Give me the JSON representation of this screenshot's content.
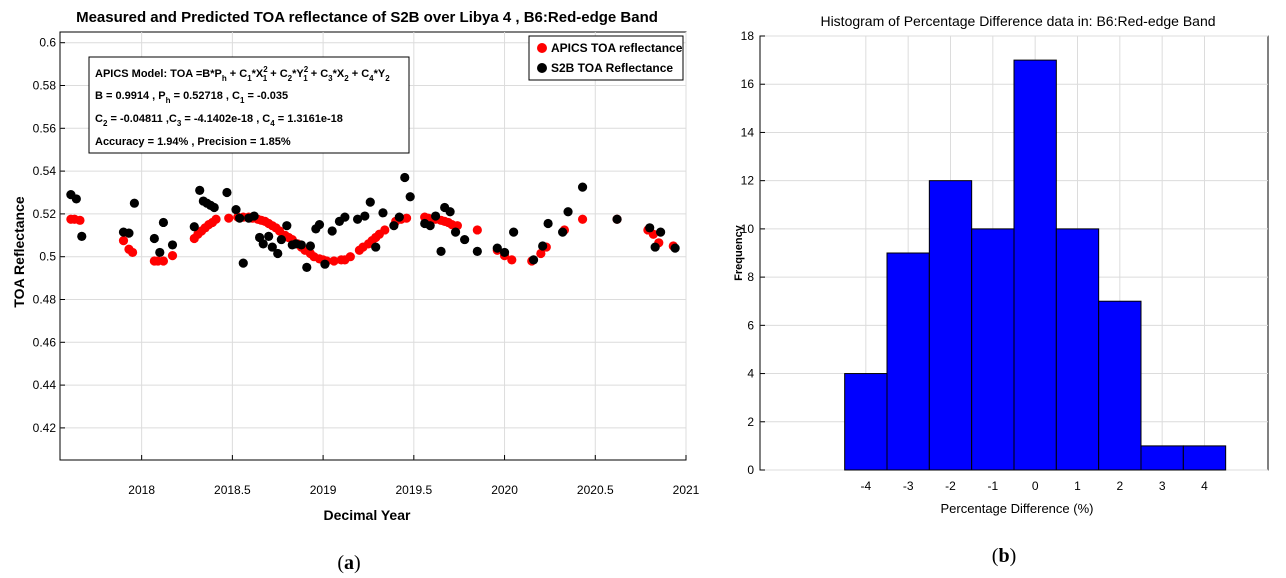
{
  "chart_data": [
    {
      "type": "scatter",
      "title": "Measured and Predicted TOA reflectance of S2B over Libya 4 , B6:Red-edge Band",
      "xlabel": "Decimal Year",
      "ylabel": "TOA Reflectance",
      "xlim": [
        2017.55,
        2021.0
      ],
      "ylim": [
        0.405,
        0.605
      ],
      "xticks": [
        2018,
        2018.5,
        2019,
        2019.5,
        2020,
        2020.5,
        2021
      ],
      "xtick_labels": [
        "2018",
        "2018.5",
        "2019",
        "2019.5",
        "2020",
        "2020.5",
        "2021"
      ],
      "yticks": [
        0.42,
        0.44,
        0.46,
        0.48,
        0.5,
        0.52,
        0.54,
        0.56,
        0.58,
        0.6
      ],
      "ytick_labels": [
        "0.42",
        "0.44",
        "0.46",
        "0.48",
        "0.5",
        "0.52",
        "0.54",
        "0.56",
        "0.58",
        "0.6"
      ],
      "grid": true,
      "legend_position": "top-right",
      "annotation": {
        "model": "APICS Model: TOA =B*P",
        "line2": "B  = 0.9914 ,  P",
        "line2b": " = 0.52718 , C",
        "line2c": " = -0.035",
        "line3": "C",
        "line3b": " = -0.04811 ,C",
        "line3c": " = -4.1402e-18 , C",
        "line3d": " = 1.3161e-18",
        "line4": "Accuracy = 1.94% , Precision = 1.85%"
      },
      "series": [
        {
          "name": "APICS TOA reflectance",
          "color": "#ff0000",
          "x": [
            2017.61,
            2017.63,
            2017.66,
            2017.9,
            2017.93,
            2017.95,
            2018.07,
            2018.09,
            2018.12,
            2018.17,
            2018.29,
            2018.31,
            2018.33,
            2018.35,
            2018.37,
            2018.39,
            2018.41,
            2018.48,
            2018.53,
            2018.56,
            2018.59,
            2018.61,
            2018.64,
            2018.66,
            2018.68,
            2018.7,
            2018.72,
            2018.74,
            2018.76,
            2018.79,
            2018.81,
            2018.83,
            2018.86,
            2018.88,
            2018.9,
            2018.93,
            2018.95,
            2018.98,
            2019.0,
            2019.02,
            2019.06,
            2019.1,
            2019.12,
            2019.15,
            2019.2,
            2019.22,
            2019.25,
            2019.27,
            2019.29,
            2019.31,
            2019.34,
            2019.4,
            2019.43,
            2019.46,
            2019.56,
            2019.58,
            2019.62,
            2019.65,
            2019.67,
            2019.69,
            2019.71,
            2019.74,
            2019.85,
            2019.96,
            2020.0,
            2020.04,
            2020.15,
            2020.2,
            2020.23,
            2020.33,
            2020.43,
            2020.62,
            2020.79,
            2020.82,
            2020.85,
            2020.93
          ],
          "y": [
            0.5175,
            0.5175,
            0.517,
            0.5075,
            0.5035,
            0.502,
            0.498,
            0.498,
            0.498,
            0.5005,
            0.5085,
            0.5105,
            0.512,
            0.5135,
            0.515,
            0.516,
            0.5175,
            0.518,
            0.5185,
            0.5185,
            0.5185,
            0.518,
            0.5175,
            0.517,
            0.5165,
            0.5155,
            0.5145,
            0.5135,
            0.512,
            0.51,
            0.509,
            0.508,
            0.506,
            0.5045,
            0.503,
            0.5015,
            0.5,
            0.499,
            0.4985,
            0.498,
            0.498,
            0.4985,
            0.4985,
            0.5,
            0.503,
            0.5045,
            0.506,
            0.5075,
            0.509,
            0.5105,
            0.5125,
            0.5165,
            0.5175,
            0.518,
            0.5185,
            0.518,
            0.5175,
            0.517,
            0.5165,
            0.516,
            0.515,
            0.5145,
            0.5125,
            0.503,
            0.5005,
            0.4985,
            0.498,
            0.5015,
            0.5045,
            0.5125,
            0.5175,
            0.5175,
            0.5125,
            0.5105,
            0.5065,
            0.505
          ]
        },
        {
          "name": "S2B TOA Reflectance",
          "color": "#000000",
          "x": [
            2017.61,
            2017.64,
            2017.67,
            2017.9,
            2017.93,
            2017.96,
            2018.07,
            2018.1,
            2018.12,
            2018.17,
            2018.29,
            2018.32,
            2018.34,
            2018.36,
            2018.38,
            2018.4,
            2018.47,
            2018.52,
            2018.54,
            2018.56,
            2018.59,
            2018.62,
            2018.65,
            2018.67,
            2018.7,
            2018.72,
            2018.75,
            2018.77,
            2018.8,
            2018.83,
            2018.85,
            2018.88,
            2018.91,
            2018.93,
            2018.96,
            2018.98,
            2019.01,
            2019.05,
            2019.09,
            2019.12,
            2019.19,
            2019.23,
            2019.26,
            2019.29,
            2019.33,
            2019.39,
            2019.42,
            2019.45,
            2019.48,
            2019.56,
            2019.59,
            2019.62,
            2019.65,
            2019.67,
            2019.7,
            2019.73,
            2019.78,
            2019.85,
            2019.96,
            2020.0,
            2020.05,
            2020.16,
            2020.21,
            2020.24,
            2020.32,
            2020.35,
            2020.43,
            2020.62,
            2020.8,
            2020.83,
            2020.86,
            2020.94
          ],
          "y": [
            0.529,
            0.527,
            0.5095,
            0.5115,
            0.511,
            0.525,
            0.5085,
            0.502,
            0.516,
            0.5055,
            0.514,
            0.531,
            0.526,
            0.525,
            0.524,
            0.523,
            0.53,
            0.522,
            0.518,
            0.497,
            0.518,
            0.519,
            0.509,
            0.506,
            0.5095,
            0.5045,
            0.5015,
            0.508,
            0.5145,
            0.5055,
            0.506,
            0.5055,
            0.495,
            0.505,
            0.513,
            0.515,
            0.4965,
            0.512,
            0.5165,
            0.5185,
            0.5175,
            0.519,
            0.5255,
            0.5045,
            0.5205,
            0.5145,
            0.5185,
            0.537,
            0.528,
            0.5155,
            0.5145,
            0.519,
            0.5025,
            0.523,
            0.521,
            0.5115,
            0.508,
            0.5025,
            0.504,
            0.502,
            0.5115,
            0.4985,
            0.505,
            0.5155,
            0.5115,
            0.521,
            0.5325,
            0.5175,
            0.5135,
            0.5045,
            0.5115,
            0.504
          ]
        }
      ]
    },
    {
      "type": "bar",
      "title": "Histogram of Percentage Difference data in: B6:Red-edge Band",
      "xlabel": "Percentage Difference (%)",
      "ylabel": "Frequency",
      "xlim": [
        -6.5,
        5.5
      ],
      "ylim": [
        0,
        18
      ],
      "xticks": [
        -4,
        -3,
        -2,
        -1,
        0,
        1,
        2,
        3,
        4
      ],
      "xtick_labels": [
        "-4",
        "-3",
        "-2",
        "-1",
        "0",
        "1",
        "2",
        "3",
        "4"
      ],
      "yticks": [
        0,
        2,
        4,
        6,
        8,
        10,
        12,
        14,
        16,
        18
      ],
      "ytick_labels": [
        "0",
        "2",
        "4",
        "6",
        "8",
        "10",
        "12",
        "14",
        "16",
        "18"
      ],
      "grid": true,
      "bar_color": "#0000ff",
      "bin_edges": [
        -4.5,
        -3.5,
        -2.5,
        -1.5,
        -0.5,
        0.5,
        1.5,
        2.5,
        3.5,
        4.5
      ],
      "values": [
        4,
        9,
        12,
        10,
        17,
        10,
        7,
        1,
        1
      ]
    }
  ],
  "captions": [
    "(",
    "a",
    ")",
    "(",
    "b",
    ")"
  ]
}
